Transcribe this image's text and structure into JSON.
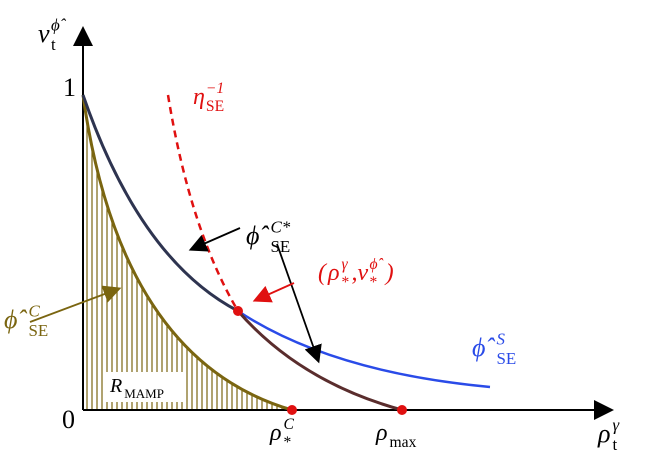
{
  "axes": {
    "y_label": [
      {
        "base": "v",
        "sub": "t",
        "sup": "ϕ̂"
      }
    ],
    "x_label": [
      {
        "base": "ρ",
        "sub": "t",
        "sup": "γ"
      }
    ],
    "y_top_tick": "1",
    "origin_tick": "0"
  },
  "labels": {
    "eta": [
      {
        "base": "η",
        "sub": "SE",
        "sup": "−1"
      }
    ],
    "phi_c_star": [
      {
        "base": "ϕ̂",
        "sub": "SE",
        "sup": "C*"
      }
    ],
    "fixed_point": [
      {
        "base": "("
      },
      {
        "base": "ρ",
        "sub": "*",
        "sup": "γ"
      },
      {
        "base": ", "
      },
      {
        "base": "v",
        "sub": "*",
        "sup": "ϕ̂"
      },
      {
        "base": ")"
      }
    ],
    "phi_s": [
      {
        "base": "ϕ̂",
        "sub": "SE",
        "sup": "S"
      }
    ],
    "phi_c": [
      {
        "base": "ϕ̂",
        "sub": "SE",
        "sup": "C"
      }
    ],
    "region": [
      {
        "base": "R",
        "sub": "MAMP"
      }
    ],
    "rho_star_c": [
      {
        "base": "ρ",
        "sub": "*",
        "sup": "C"
      }
    ],
    "rho_max": [
      {
        "base": "ρ",
        "sub": "max"
      }
    ]
  }
}
